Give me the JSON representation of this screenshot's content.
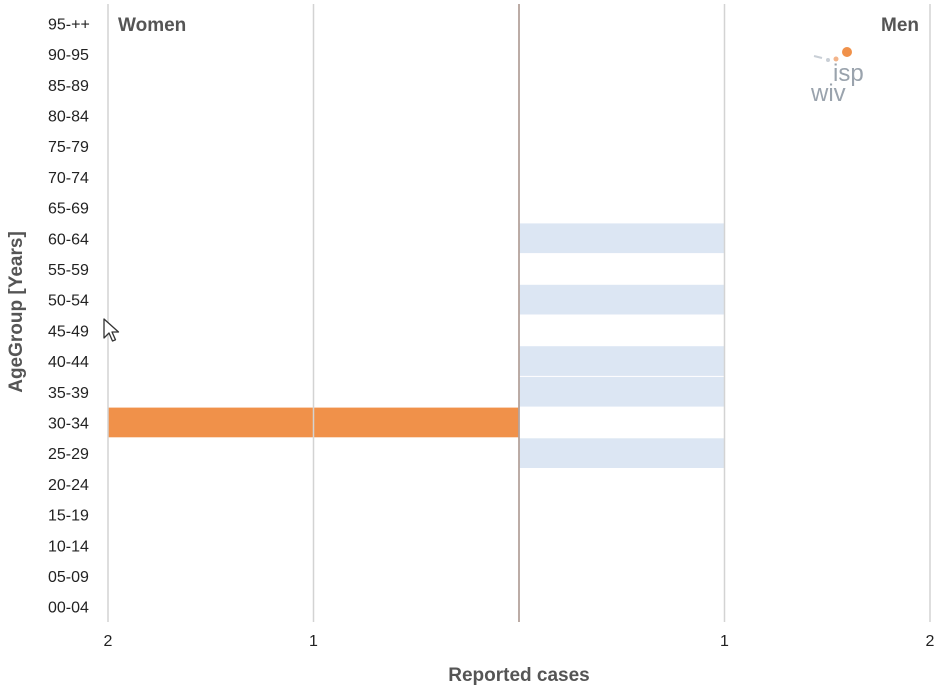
{
  "chart_data": {
    "type": "bar",
    "orientation": "horizontal-diverging",
    "categories": [
      "00-04",
      "05-09",
      "10-14",
      "15-19",
      "20-24",
      "25-29",
      "30-34",
      "35-39",
      "40-44",
      "45-49",
      "50-54",
      "55-59",
      "60-64",
      "65-69",
      "70-74",
      "75-79",
      "80-84",
      "85-89",
      "90-95",
      "95-++"
    ],
    "series": [
      {
        "name": "Women",
        "values": [
          0,
          0,
          0,
          0,
          0,
          0,
          2,
          0,
          0,
          0,
          0,
          0,
          0,
          0,
          0,
          0,
          0,
          0,
          0,
          0
        ],
        "color": "#f0914a"
      },
      {
        "name": "Men",
        "values": [
          0,
          0,
          0,
          0,
          0,
          1,
          0,
          1,
          1,
          0,
          1,
          0,
          1,
          0,
          0,
          0,
          0,
          0,
          0,
          0
        ],
        "color": "#dce6f3"
      }
    ],
    "xlabel": "Reported cases",
    "ylabel": "AgeGroup [Years]",
    "xlim": [
      -2,
      2
    ],
    "xticks": [
      {
        "value": -2,
        "label": "2"
      },
      {
        "value": -1,
        "label": "1"
      },
      {
        "value": 1,
        "label": "1"
      },
      {
        "value": 2,
        "label": "2"
      }
    ],
    "grid": true,
    "legend": "none"
  },
  "logo": {
    "top": "isp",
    "bottom": "wiv",
    "dot_color": "#f0914a"
  },
  "cursor_icon": "arrow-cursor-icon"
}
